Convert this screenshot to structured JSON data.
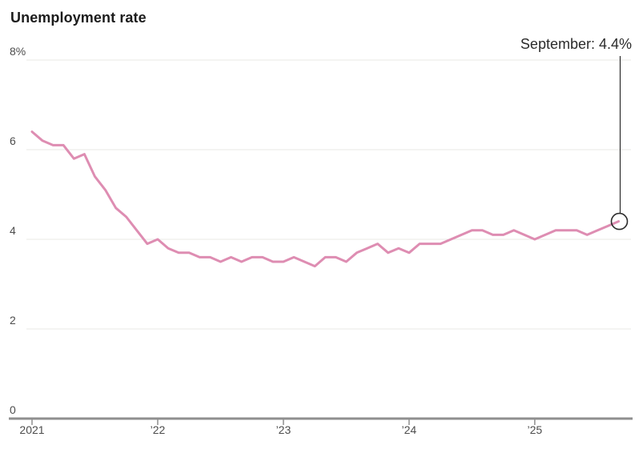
{
  "colors": {
    "line": "#de8db2",
    "grid": "#e8e8e6",
    "axis": "#8f8f8f",
    "tick_text": "#4d4d4d",
    "title_text": "#1c1c1c",
    "marker": "#2b2b2b"
  },
  "chart_data": {
    "type": "line",
    "title": "Unemployment rate",
    "y_unit": "%",
    "ylim": [
      0,
      8
    ],
    "grid": "horizontal",
    "legend": "none",
    "x_start": "2021-01",
    "x_end": "2025-09",
    "x_frequency": "monthly",
    "y_ticks": [
      {
        "value": 8,
        "label": "8%"
      },
      {
        "value": 6,
        "label": "6"
      },
      {
        "value": 4,
        "label": "4"
      },
      {
        "value": 2,
        "label": "2"
      },
      {
        "value": 0,
        "label": "0"
      }
    ],
    "x_ticks": [
      {
        "month_index": 0,
        "label": "2021"
      },
      {
        "month_index": 12,
        "label": "’22"
      },
      {
        "month_index": 24,
        "label": "’23"
      },
      {
        "month_index": 36,
        "label": "’24"
      },
      {
        "month_index": 48,
        "label": "’25"
      }
    ],
    "series": [
      {
        "name": "Unemployment rate",
        "color": "#de8db2",
        "values": [
          6.4,
          6.2,
          6.1,
          6.1,
          5.8,
          5.9,
          5.4,
          5.1,
          4.7,
          4.5,
          4.2,
          3.9,
          4.0,
          3.8,
          3.7,
          3.7,
          3.6,
          3.6,
          3.5,
          3.6,
          3.5,
          3.6,
          3.6,
          3.5,
          3.5,
          3.6,
          3.5,
          3.4,
          3.6,
          3.6,
          3.5,
          3.7,
          3.8,
          3.9,
          3.7,
          3.8,
          3.7,
          3.9,
          3.9,
          3.9,
          4.0,
          4.1,
          4.2,
          4.2,
          4.1,
          4.1,
          4.2,
          4.1,
          4.0,
          4.1,
          4.2,
          4.2,
          4.2,
          4.1,
          4.2,
          4.3,
          4.4
        ]
      }
    ],
    "annotation": {
      "label": "September: 4.4%",
      "month_index": 56,
      "value": 4.4
    }
  }
}
